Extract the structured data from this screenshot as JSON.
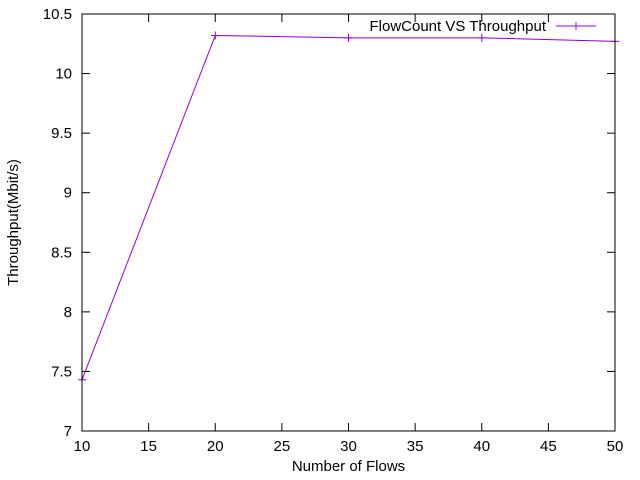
{
  "chart_data": {
    "type": "line",
    "title": "",
    "xlabel": "Number of Flows",
    "ylabel": "Throughput(Mbit/s)",
    "xlim": [
      10,
      50
    ],
    "ylim": [
      7,
      10.5
    ],
    "x_ticks": [
      10,
      15,
      20,
      25,
      30,
      35,
      40,
      45,
      50
    ],
    "x_tick_labels": [
      "10",
      "15",
      "20",
      "25",
      "30",
      "35",
      "40",
      "45",
      "50"
    ],
    "y_ticks": [
      7,
      7.5,
      8,
      8.5,
      9,
      9.5,
      10,
      10.5
    ],
    "y_tick_labels": [
      "7",
      "7.5",
      "8",
      "8.5",
      "9",
      "9.5",
      "10",
      "10.5"
    ],
    "grid": false,
    "legend_position": "top-right",
    "series": [
      {
        "name": "FlowCount VS Throughput",
        "color": "#9400d3",
        "marker": "plus",
        "x": [
          10,
          20,
          30,
          40,
          50
        ],
        "y": [
          7.43,
          10.32,
          10.3,
          10.3,
          10.27
        ]
      }
    ]
  }
}
